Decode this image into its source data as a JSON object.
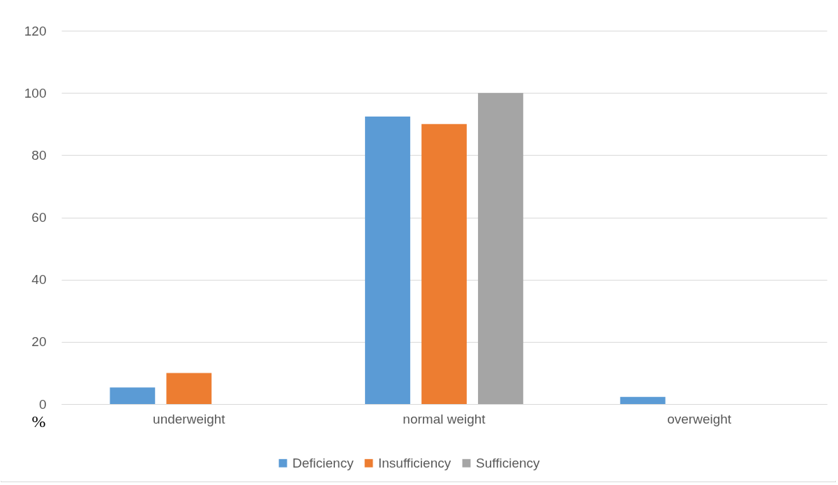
{
  "chart_data": {
    "type": "bar",
    "ylabel": "%",
    "categories": [
      "underweight",
      "normal weight",
      "overweight"
    ],
    "series": [
      {
        "name": "Deficiency",
        "color": "#5b9bd5",
        "values": [
          5.3,
          92.4,
          2.3
        ]
      },
      {
        "name": "Insufficiency",
        "color": "#ed7d31",
        "values": [
          10,
          90,
          0
        ]
      },
      {
        "name": "Sufficiency",
        "color": "#a5a5a5",
        "values": [
          0,
          100,
          0
        ]
      }
    ],
    "ylim": [
      0,
      120
    ],
    "yticks": [
      0,
      20,
      40,
      60,
      80,
      100,
      120
    ],
    "grid": "y",
    "legend": "bottom"
  }
}
